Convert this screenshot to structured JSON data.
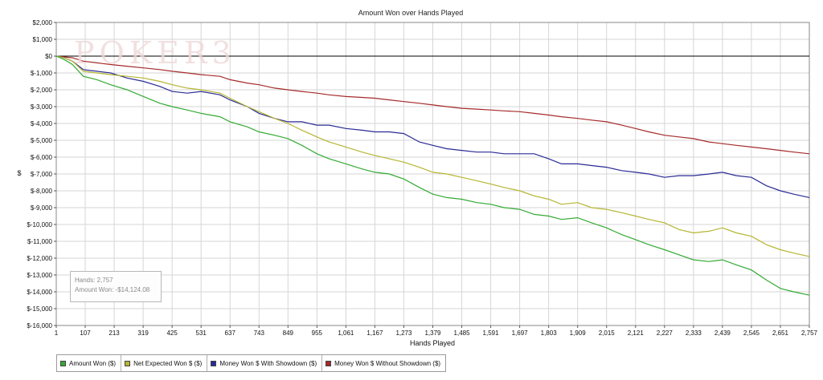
{
  "watermark": "POKER3",
  "stats": {
    "hands_text": "Hands: 2,757",
    "amount_text": "Amount Won: -$14,124.08"
  },
  "legend": [
    {
      "label": "Amount Won ($)",
      "color": "#33aa33"
    },
    {
      "label": "Net Expected Won $ ($)",
      "color": "#b5b533"
    },
    {
      "label": "Money Won $ With Showdown ($)",
      "color": "#2a2a96"
    },
    {
      "label": "Money Won $ Without Showdown ($)",
      "color": "#a52a2a"
    }
  ],
  "chart_data": {
    "type": "line",
    "title": "Amount Won over Hands Played",
    "xlabel": "Hands Played",
    "ylabel": "$",
    "xlim": [
      1,
      2757
    ],
    "ylim": [
      -16000,
      2000
    ],
    "grid": true,
    "legend_position": "bottom-left",
    "x_ticks": [
      "1",
      "107",
      "213",
      "319",
      "425",
      "531",
      "637",
      "743",
      "849",
      "955",
      "1,061",
      "1,167",
      "1,273",
      "1,379",
      "1,485",
      "1,591",
      "1,697",
      "1,803",
      "1,909",
      "2,015",
      "2,121",
      "2,227",
      "2,333",
      "2,439",
      "2,545",
      "2,651",
      "2,757"
    ],
    "y_ticks": [
      "$2,000",
      "$1,000",
      "$0",
      "$-1,000",
      "$-2,000",
      "$-3,000",
      "$-4,000",
      "$-5,000",
      "$-6,000",
      "$-7,000",
      "$-8,000",
      "$-9,000",
      "$-10,000",
      "$-11,000",
      "$-12,000",
      "$-13,000",
      "$-14,000",
      "$-15,000",
      "$-16,000"
    ],
    "x_tick_values": [
      1,
      107,
      213,
      319,
      425,
      531,
      637,
      743,
      849,
      955,
      1061,
      1167,
      1273,
      1379,
      1485,
      1591,
      1697,
      1803,
      1909,
      2015,
      2121,
      2227,
      2333,
      2439,
      2545,
      2651,
      2757
    ],
    "y_tick_values": [
      2000,
      1000,
      0,
      -1000,
      -2000,
      -3000,
      -4000,
      -5000,
      -6000,
      -7000,
      -8000,
      -9000,
      -10000,
      -11000,
      -12000,
      -13000,
      -14000,
      -15000,
      -16000
    ],
    "series": [
      {
        "name": "Amount Won ($)",
        "color": "#33aa33",
        "x": [
          1,
          30,
          60,
          100,
          150,
          200,
          260,
          320,
          380,
          425,
          480,
          531,
          600,
          637,
          700,
          743,
          800,
          849,
          900,
          955,
          1000,
          1061,
          1120,
          1167,
          1220,
          1273,
          1330,
          1379,
          1430,
          1485,
          1540,
          1591,
          1640,
          1697,
          1750,
          1803,
          1850,
          1909,
          1960,
          2015,
          2070,
          2121,
          2170,
          2227,
          2280,
          2333,
          2390,
          2439,
          2490,
          2545,
          2600,
          2651,
          2700,
          2757
        ],
        "y": [
          0,
          -200,
          -500,
          -1200,
          -1400,
          -1700,
          -2000,
          -2400,
          -2800,
          -3000,
          -3200,
          -3400,
          -3600,
          -3900,
          -4200,
          -4500,
          -4700,
          -4900,
          -5300,
          -5800,
          -6100,
          -6400,
          -6700,
          -6900,
          -7000,
          -7300,
          -7800,
          -8200,
          -8400,
          -8500,
          -8700,
          -8800,
          -9000,
          -9100,
          -9400,
          -9500,
          -9700,
          -9600,
          -9900,
          -10200,
          -10600,
          -10900,
          -11200,
          -11500,
          -11800,
          -12100,
          -12200,
          -12100,
          -12400,
          -12700,
          -13300,
          -13800,
          -14000,
          -14200
        ]
      },
      {
        "name": "Net Expected Won $ ($)",
        "color": "#b5b533",
        "x": [
          1,
          30,
          60,
          100,
          150,
          200,
          260,
          320,
          380,
          425,
          480,
          531,
          600,
          637,
          700,
          743,
          800,
          849,
          900,
          955,
          1000,
          1061,
          1120,
          1167,
          1220,
          1273,
          1330,
          1379,
          1430,
          1485,
          1540,
          1591,
          1640,
          1697,
          1750,
          1803,
          1850,
          1909,
          1960,
          2015,
          2070,
          2121,
          2170,
          2227,
          2280,
          2333,
          2390,
          2439,
          2490,
          2545,
          2600,
          2651,
          2700,
          2757
        ],
        "y": [
          0,
          -100,
          -300,
          -900,
          -1000,
          -1100,
          -1200,
          -1300,
          -1500,
          -1700,
          -1900,
          -2000,
          -2200,
          -2500,
          -3000,
          -3300,
          -3700,
          -4000,
          -4400,
          -4800,
          -5100,
          -5400,
          -5700,
          -5900,
          -6100,
          -6300,
          -6600,
          -6900,
          -7000,
          -7200,
          -7400,
          -7600,
          -7800,
          -8000,
          -8300,
          -8500,
          -8800,
          -8700,
          -9000,
          -9100,
          -9300,
          -9500,
          -9700,
          -9900,
          -10300,
          -10500,
          -10400,
          -10200,
          -10500,
          -10700,
          -11200,
          -11500,
          -11700,
          -11900
        ]
      },
      {
        "name": "Money Won $ With Showdown ($)",
        "color": "#2a2a96",
        "x": [
          1,
          30,
          60,
          100,
          150,
          200,
          260,
          320,
          380,
          425,
          480,
          531,
          600,
          637,
          700,
          743,
          800,
          849,
          900,
          955,
          1000,
          1061,
          1120,
          1167,
          1220,
          1273,
          1330,
          1379,
          1430,
          1485,
          1540,
          1591,
          1640,
          1697,
          1750,
          1803,
          1850,
          1909,
          1960,
          2015,
          2070,
          2121,
          2170,
          2227,
          2280,
          2333,
          2390,
          2439,
          2490,
          2545,
          2600,
          2651,
          2700,
          2757
        ],
        "y": [
          0,
          -100,
          -300,
          -800,
          -900,
          -1000,
          -1300,
          -1500,
          -1800,
          -2100,
          -2200,
          -2100,
          -2300,
          -2600,
          -3000,
          -3400,
          -3700,
          -3900,
          -3900,
          -4100,
          -4100,
          -4300,
          -4400,
          -4500,
          -4500,
          -4600,
          -5100,
          -5300,
          -5500,
          -5600,
          -5700,
          -5700,
          -5800,
          -5800,
          -5800,
          -6100,
          -6400,
          -6400,
          -6500,
          -6600,
          -6800,
          -6900,
          -7000,
          -7200,
          -7100,
          -7100,
          -7000,
          -6900,
          -7100,
          -7200,
          -7700,
          -8000,
          -8200,
          -8400
        ]
      },
      {
        "name": "Money Won $ Without Showdown ($)",
        "color": "#a52a2a",
        "x": [
          1,
          30,
          60,
          100,
          150,
          200,
          260,
          320,
          380,
          425,
          480,
          531,
          600,
          637,
          700,
          743,
          800,
          849,
          900,
          955,
          1000,
          1061,
          1120,
          1167,
          1220,
          1273,
          1330,
          1379,
          1430,
          1485,
          1540,
          1591,
          1640,
          1697,
          1750,
          1803,
          1850,
          1909,
          1960,
          2015,
          2070,
          2121,
          2170,
          2227,
          2280,
          2333,
          2390,
          2439,
          2490,
          2545,
          2600,
          2651,
          2700,
          2757
        ],
        "y": [
          0,
          -50,
          -100,
          -300,
          -400,
          -500,
          -600,
          -700,
          -800,
          -900,
          -1000,
          -1100,
          -1200,
          -1400,
          -1600,
          -1700,
          -1900,
          -2000,
          -2100,
          -2200,
          -2300,
          -2400,
          -2450,
          -2500,
          -2600,
          -2700,
          -2800,
          -2900,
          -3000,
          -3100,
          -3150,
          -3200,
          -3250,
          -3300,
          -3400,
          -3500,
          -3600,
          -3700,
          -3800,
          -3900,
          -4100,
          -4300,
          -4500,
          -4700,
          -4800,
          -4900,
          -5100,
          -5200,
          -5300,
          -5400,
          -5500,
          -5600,
          -5700,
          -5800
        ]
      }
    ]
  }
}
